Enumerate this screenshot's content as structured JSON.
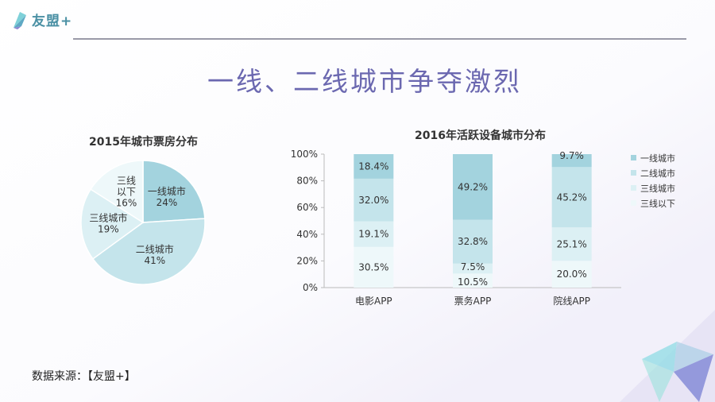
{
  "brand": {
    "logo_text": "友盟+"
  },
  "page_title": "一线、二线城市争夺激烈",
  "source_text": "数据来源：【友盟+】",
  "colors": {
    "tier1": "#a3d3de",
    "tier2": "#c4e4eb",
    "tier3": "#dcf0f4",
    "tier3below": "#eef8fa",
    "title": "#6b68b0"
  },
  "chart_data": [
    {
      "type": "pie",
      "title": "2015年城市票房分布",
      "slices": [
        {
          "name": "一线城市",
          "label": "24%",
          "value": 24,
          "color": "#a3d3de"
        },
        {
          "name": "二线城市",
          "label": "41%",
          "value": 41,
          "color": "#c4e4eb"
        },
        {
          "name": "三线城市",
          "label": "19%",
          "value": 19,
          "color": "#dcf0f4"
        },
        {
          "name": "三线以下",
          "label": "16%",
          "value": 16,
          "color": "#eef8fa"
        }
      ]
    },
    {
      "type": "bar",
      "stacked": true,
      "title": "2016年活跃设备城市分布",
      "categories": [
        "电影APP",
        "票务APP",
        "院线APP"
      ],
      "yticks": [
        "0%",
        "20%",
        "40%",
        "60%",
        "80%",
        "100%"
      ],
      "ylim": [
        0,
        100
      ],
      "legend_position": "right",
      "series": [
        {
          "name": "三线以下",
          "color": "#eef8fa",
          "values": [
            30.5,
            10.5,
            20.0
          ],
          "labels": [
            "30.5%",
            "10.5%",
            "20.0%"
          ]
        },
        {
          "name": "三线城市",
          "color": "#dcf0f4",
          "values": [
            19.1,
            7.5,
            25.1
          ],
          "labels": [
            "19.1%",
            "7.5%",
            "25.1%"
          ]
        },
        {
          "name": "二线城市",
          "color": "#c4e4eb",
          "values": [
            32.0,
            32.8,
            45.2
          ],
          "labels": [
            "32.0%",
            "32.8%",
            "45.2%"
          ]
        },
        {
          "name": "一线城市",
          "color": "#a3d3de",
          "values": [
            18.4,
            49.2,
            9.7
          ],
          "labels": [
            "18.4%",
            "49.2%",
            "9.7%"
          ]
        }
      ],
      "legend_order": [
        "一线城市",
        "二线城市",
        "三线城市",
        "三线以下"
      ]
    }
  ]
}
